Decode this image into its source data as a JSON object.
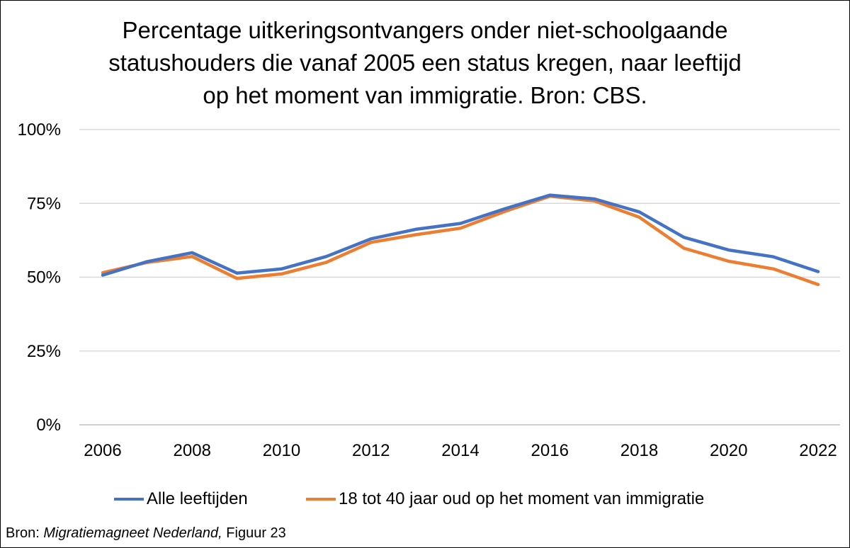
{
  "chart_data": {
    "type": "line",
    "title_lines": [
      "Percentage uitkeringsontvangers onder niet-schoolgaande",
      "statushouders die vanaf 2005 een status kregen, naar leeftijd",
      "op het moment van immigratie. Bron: CBS."
    ],
    "x": [
      2006,
      2007,
      2008,
      2009,
      2010,
      2011,
      2012,
      2013,
      2014,
      2015,
      2016,
      2017,
      2018,
      2019,
      2020,
      2021,
      2022
    ],
    "x_tick_labels": [
      "2006",
      "2008",
      "2010",
      "2012",
      "2014",
      "2016",
      "2018",
      "2020",
      "2022"
    ],
    "y_tick_labels": [
      "100%",
      "75%",
      "50%",
      "25%",
      "0%"
    ],
    "ylim": [
      0,
      100
    ],
    "grid": true,
    "legend_position": "bottom",
    "series": [
      {
        "name": "Alle leeftijden",
        "color": "#4472C4",
        "values": [
          50.7,
          55.3,
          58.3,
          51.4,
          52.8,
          57.0,
          63.0,
          66.2,
          68.2,
          73.2,
          77.8,
          76.5,
          72.1,
          63.5,
          59.2,
          56.9,
          51.9
        ]
      },
      {
        "name": "18 tot 40 jaar oud op het moment van immigratie",
        "color": "#ED7D31",
        "values": [
          51.5,
          55.0,
          57.0,
          49.6,
          51.1,
          55.0,
          61.8,
          64.4,
          66.6,
          72.3,
          77.4,
          75.8,
          70.3,
          59.8,
          55.4,
          52.8,
          47.5
        ]
      }
    ]
  },
  "source": {
    "prefix": "Bron: ",
    "italic": "Migratiemagneet Nederland,",
    "suffix": " Figuur 23"
  }
}
